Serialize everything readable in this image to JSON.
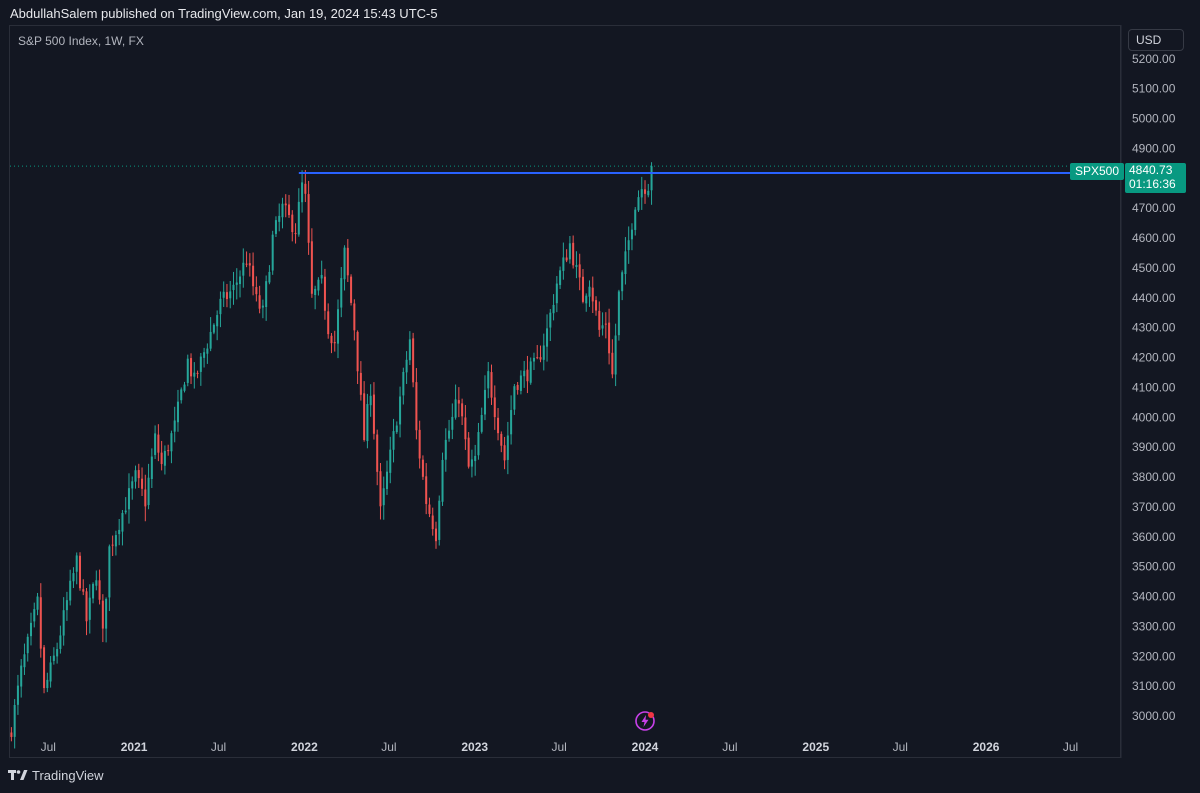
{
  "header": {
    "text": "AbdullahSalem published on TradingView.com, Jan 19, 2024 15:43 UTC-5"
  },
  "legend": {
    "text": "S&P 500 Index, 1W, FX"
  },
  "currency_button": {
    "label": "USD"
  },
  "footer": {
    "brand": "TradingView"
  },
  "badges": {
    "ticker": "SPX500",
    "price": "4840.73",
    "countdown": "01:16:36"
  },
  "icons": {
    "footer_logo": "tradingview-logo-icon",
    "alert": "lightning-alert-icon"
  },
  "colors": {
    "up": "#26a69a",
    "down": "#ef5350",
    "resistance": "#2962ff",
    "price_line": "#089981",
    "background": "#131722"
  },
  "chart_data": {
    "type": "candlestick",
    "title": "S&P 500 Index, 1W, FX",
    "ylim": [
      2940,
      5310
    ],
    "y_ticks": [
      "5200.00",
      "5100.00",
      "5000.00",
      "4900.00",
      "4800.00",
      "4700.00",
      "4600.00",
      "4500.00",
      "4400.00",
      "4300.00",
      "4200.00",
      "4100.00",
      "4000.00",
      "3900.00",
      "3800.00",
      "3700.00",
      "3600.00",
      "3500.00",
      "3400.00",
      "3300.00",
      "3200.00",
      "3100.00",
      "3000.00"
    ],
    "x_ticks": [
      {
        "label": "Jul",
        "date": "2020-07-01"
      },
      {
        "label": "2021",
        "date": "2021-01-01"
      },
      {
        "label": "Jul",
        "date": "2021-07-01"
      },
      {
        "label": "2022",
        "date": "2022-01-01"
      },
      {
        "label": "Jul",
        "date": "2022-07-01"
      },
      {
        "label": "2023",
        "date": "2023-01-01"
      },
      {
        "label": "Jul",
        "date": "2023-07-01"
      },
      {
        "label": "2024",
        "date": "2024-01-01"
      },
      {
        "label": "Jul",
        "date": "2024-07-01"
      },
      {
        "label": "2025",
        "date": "2025-01-01"
      },
      {
        "label": "Jul",
        "date": "2025-07-01"
      },
      {
        "label": "2026",
        "date": "2026-01-01"
      },
      {
        "label": "Jul",
        "date": "2026-07-01"
      }
    ],
    "x_range": [
      "2020-04-10",
      "2026-10-15"
    ],
    "resistance_line": {
      "value": 4818,
      "from": "2021-12-20",
      "to": "2026-10-15"
    },
    "last_price": 4840.73,
    "anchors": [
      [
        "2020-04-13",
        2960
      ],
      [
        "2020-05-04",
        3150
      ],
      [
        "2020-05-18",
        3240
      ],
      [
        "2020-06-08",
        3380
      ],
      [
        "2020-06-22",
        3080
      ],
      [
        "2020-07-20",
        3230
      ],
      [
        "2020-08-10",
        3380
      ],
      [
        "2020-08-31",
        3520
      ],
      [
        "2020-09-21",
        3320
      ],
      [
        "2020-10-12",
        3480
      ],
      [
        "2020-10-26",
        3270
      ],
      [
        "2020-11-09",
        3560
      ],
      [
        "2020-12-07",
        3680
      ],
      [
        "2021-01-04",
        3800
      ],
      [
        "2021-01-25",
        3720
      ],
      [
        "2021-02-15",
        3930
      ],
      [
        "2021-03-01",
        3840
      ],
      [
        "2021-03-29",
        3970
      ],
      [
        "2021-04-26",
        4190
      ],
      [
        "2021-05-10",
        4120
      ],
      [
        "2021-06-07",
        4250
      ],
      [
        "2021-07-05",
        4380
      ],
      [
        "2021-08-02",
        4430
      ],
      [
        "2021-08-30",
        4530
      ],
      [
        "2021-09-20",
        4390
      ],
      [
        "2021-10-04",
        4350
      ],
      [
        "2021-10-25",
        4600
      ],
      [
        "2021-11-15",
        4700
      ],
      [
        "2021-12-13",
        4630
      ],
      [
        "2021-12-27",
        4775
      ],
      [
        "2022-01-03",
        4730
      ],
      [
        "2022-01-17",
        4400
      ],
      [
        "2022-02-07",
        4450
      ],
      [
        "2022-02-21",
        4300
      ],
      [
        "2022-03-07",
        4250
      ],
      [
        "2022-03-28",
        4550
      ],
      [
        "2022-04-18",
        4300
      ],
      [
        "2022-05-09",
        3930
      ],
      [
        "2022-05-23",
        4100
      ],
      [
        "2022-06-13",
        3680
      ],
      [
        "2022-07-04",
        3870
      ],
      [
        "2022-08-15",
        4260
      ],
      [
        "2022-08-29",
        3950
      ],
      [
        "2022-09-19",
        3720
      ],
      [
        "2022-10-10",
        3610
      ],
      [
        "2022-10-24",
        3880
      ],
      [
        "2022-11-28",
        4070
      ],
      [
        "2022-12-19",
        3830
      ],
      [
        "2023-01-02",
        3860
      ],
      [
        "2023-01-30",
        4140
      ],
      [
        "2023-03-06",
        3860
      ],
      [
        "2023-03-27",
        4110
      ],
      [
        "2023-04-24",
        4150
      ],
      [
        "2023-05-15",
        4180
      ],
      [
        "2023-06-05",
        4290
      ],
      [
        "2023-06-26",
        4450
      ],
      [
        "2023-07-24",
        4580
      ],
      [
        "2023-08-07",
        4490
      ],
      [
        "2023-08-21",
        4400
      ],
      [
        "2023-09-04",
        4460
      ],
      [
        "2023-09-25",
        4290
      ],
      [
        "2023-10-09",
        4320
      ],
      [
        "2023-10-23",
        4140
      ],
      [
        "2023-11-06",
        4410
      ],
      [
        "2023-11-27",
        4590
      ],
      [
        "2023-12-11",
        4720
      ],
      [
        "2023-12-25",
        4770
      ],
      [
        "2024-01-08",
        4780
      ],
      [
        "2024-01-15",
        4840.73
      ]
    ]
  }
}
